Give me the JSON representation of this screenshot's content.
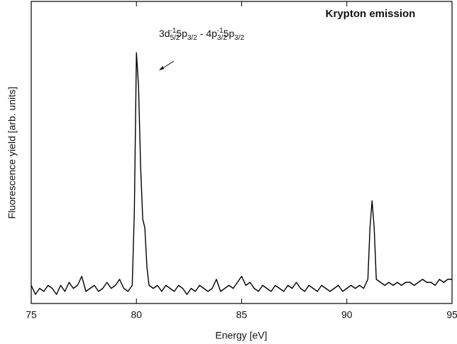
{
  "chart_data": {
    "type": "line",
    "title": "Krypton emission",
    "x_label": "Energy [eV]",
    "y_label": "Fluorescence yield [arb. units]",
    "annotation": [
      "3d",
      "5/2",
      "-1",
      "5p",
      "3/2",
      " - 4p",
      "3/2",
      "-1",
      "5p",
      "3/2"
    ],
    "xlim": [
      75,
      95
    ],
    "xticks": [
      75,
      80,
      85,
      90,
      95
    ],
    "ylim": [
      0,
      100
    ],
    "series": [
      {
        "name": "Krypton emission",
        "color": "#000000",
        "x": [
          75.0,
          75.2,
          75.4,
          75.6,
          75.8,
          76.0,
          76.2,
          76.4,
          76.6,
          76.8,
          77.0,
          77.2,
          77.4,
          77.6,
          77.8,
          78.0,
          78.2,
          78.4,
          78.6,
          78.8,
          79.0,
          79.2,
          79.4,
          79.6,
          79.8,
          79.9,
          80.0,
          80.1,
          80.2,
          80.3,
          80.4,
          80.5,
          80.6,
          80.8,
          81.0,
          81.2,
          81.4,
          81.6,
          81.8,
          82.0,
          82.2,
          82.4,
          82.6,
          82.8,
          83.0,
          83.2,
          83.4,
          83.6,
          83.8,
          84.0,
          84.2,
          84.4,
          84.6,
          84.8,
          85.0,
          85.2,
          85.4,
          85.6,
          85.8,
          86.0,
          86.2,
          86.4,
          86.6,
          86.8,
          87.0,
          87.2,
          87.4,
          87.6,
          87.8,
          88.0,
          88.2,
          88.4,
          88.6,
          88.8,
          89.0,
          89.2,
          89.4,
          89.6,
          89.8,
          90.0,
          90.2,
          90.4,
          90.6,
          90.8,
          91.0,
          91.1,
          91.2,
          91.3,
          91.4,
          91.6,
          91.8,
          92.0,
          92.2,
          92.4,
          92.6,
          92.8,
          93.0,
          93.2,
          93.4,
          93.6,
          93.8,
          94.0,
          94.2,
          94.4,
          94.6,
          94.8,
          95.0
        ],
        "values": [
          6,
          3,
          5,
          4,
          6,
          5,
          3,
          6,
          4,
          7,
          5,
          6,
          9,
          4,
          5,
          6,
          4,
          5,
          7,
          5,
          6,
          8,
          5,
          4,
          6,
          30,
          83,
          72,
          45,
          28,
          25,
          12,
          6,
          5,
          6,
          4,
          6,
          5,
          4,
          6,
          5,
          3,
          5,
          4,
          6,
          5,
          4,
          5,
          8,
          4,
          5,
          6,
          5,
          7,
          9,
          6,
          7,
          5,
          4,
          6,
          5,
          4,
          6,
          5,
          4,
          6,
          5,
          7,
          5,
          4,
          6,
          5,
          4,
          6,
          5,
          4,
          5,
          6,
          4,
          5,
          6,
          5,
          6,
          5,
          8,
          25,
          34,
          25,
          8,
          7,
          6,
          7,
          6,
          7,
          6,
          7,
          7,
          6,
          7,
          8,
          7,
          7,
          6,
          8,
          7,
          8,
          8
        ]
      }
    ]
  }
}
